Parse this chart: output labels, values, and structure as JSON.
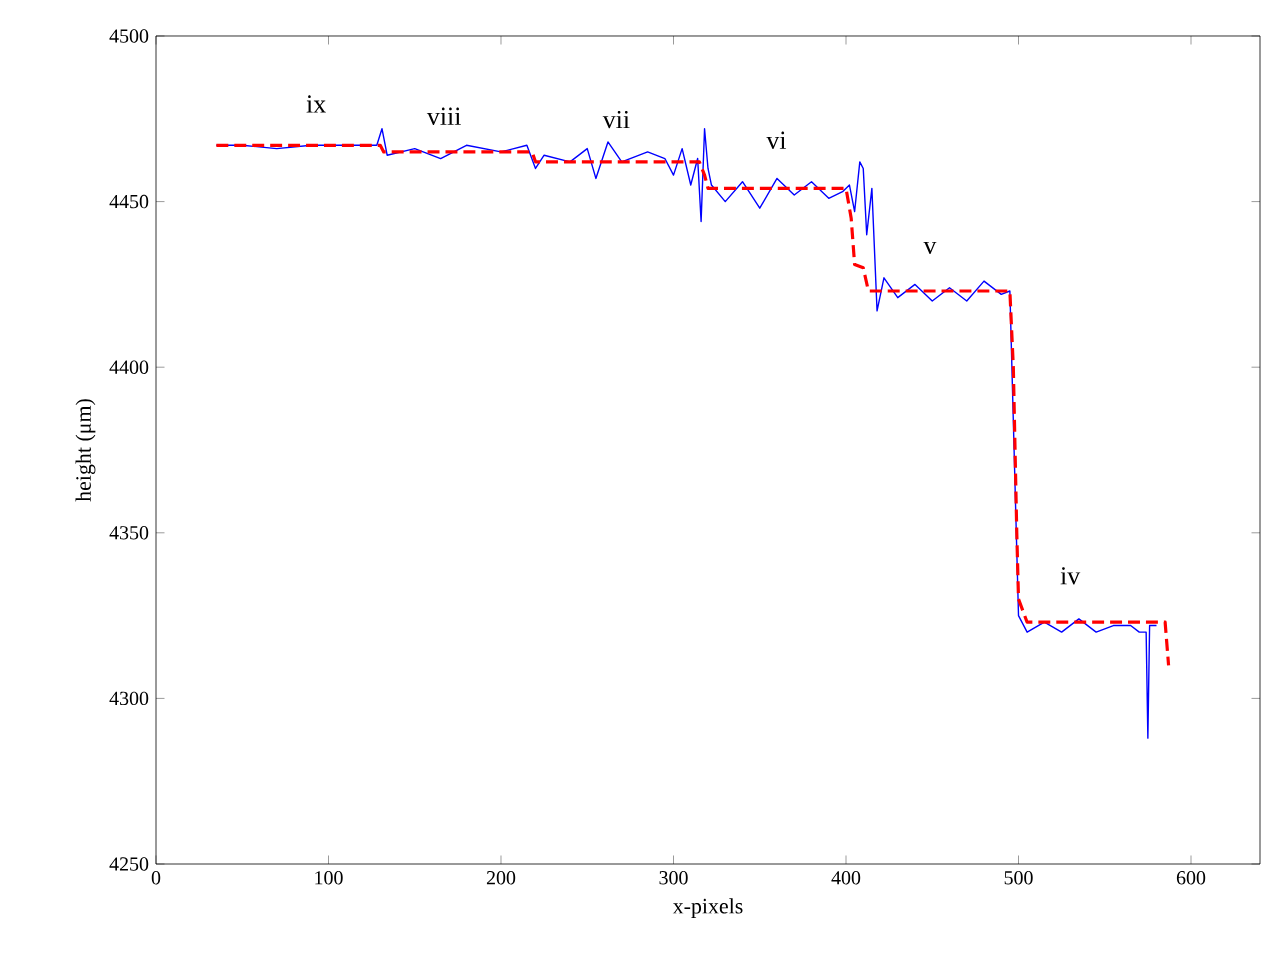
{
  "chart_data": {
    "type": "line",
    "xlabel": "x-pixels",
    "ylabel": "height (μm)",
    "xlim": [
      0,
      640
    ],
    "ylim": [
      4250,
      4500
    ],
    "xticks": [
      0,
      100,
      200,
      300,
      400,
      500,
      600
    ],
    "yticks": [
      4250,
      4300,
      4350,
      4400,
      4450,
      4500
    ],
    "grid": false,
    "series": [
      {
        "color": "#0000ff",
        "line_style": "solid",
        "x": [
          35,
          50,
          70,
          90,
          110,
          128,
          131,
          134,
          150,
          165,
          180,
          200,
          215,
          220,
          225,
          240,
          250,
          255,
          262,
          270,
          285,
          295,
          300,
          305,
          310,
          314,
          316,
          318,
          320,
          322,
          330,
          340,
          350,
          360,
          370,
          380,
          390,
          398,
          402,
          405,
          408,
          410,
          412,
          415,
          418,
          422,
          430,
          440,
          450,
          460,
          470,
          480,
          490,
          495,
          500,
          505,
          515,
          525,
          535,
          545,
          555,
          565,
          570,
          574,
          575,
          576,
          580
        ],
        "values": [
          4467,
          4467,
          4466,
          4467,
          4467,
          4467,
          4472,
          4464,
          4466,
          4463,
          4467,
          4465,
          4467,
          4460,
          4464,
          4462,
          4466,
          4457,
          4468,
          4462,
          4465,
          4463,
          4458,
          4466,
          4455,
          4463,
          4444,
          4472,
          4460,
          4455,
          4450,
          4456,
          4448,
          4457,
          4452,
          4456,
          4451,
          4453,
          4455,
          4447,
          4462,
          4460,
          4440,
          4454,
          4417,
          4427,
          4421,
          4425,
          4420,
          4424,
          4420,
          4426,
          4422,
          4423,
          4325,
          4320,
          4323,
          4320,
          4324,
          4320,
          4322,
          4322,
          4320,
          4320,
          4288,
          4322,
          4322
        ]
      },
      {
        "color": "#ff0000",
        "line_style": "dashed",
        "x": [
          35,
          130,
          132,
          218,
          220,
          315,
          318,
          320,
          400,
          403,
          405,
          410,
          413,
          495,
          497,
          499,
          500,
          505,
          585,
          587
        ],
        "values": [
          4467,
          4467,
          4465,
          4465,
          4462,
          4462,
          4458,
          4454,
          4454,
          4445,
          4431,
          4430,
          4423,
          4423,
          4400,
          4350,
          4330,
          4323,
          4323,
          4310
        ]
      }
    ],
    "annotations": [
      "ix",
      "viii",
      "vii",
      "vi",
      "v",
      "iv"
    ]
  }
}
